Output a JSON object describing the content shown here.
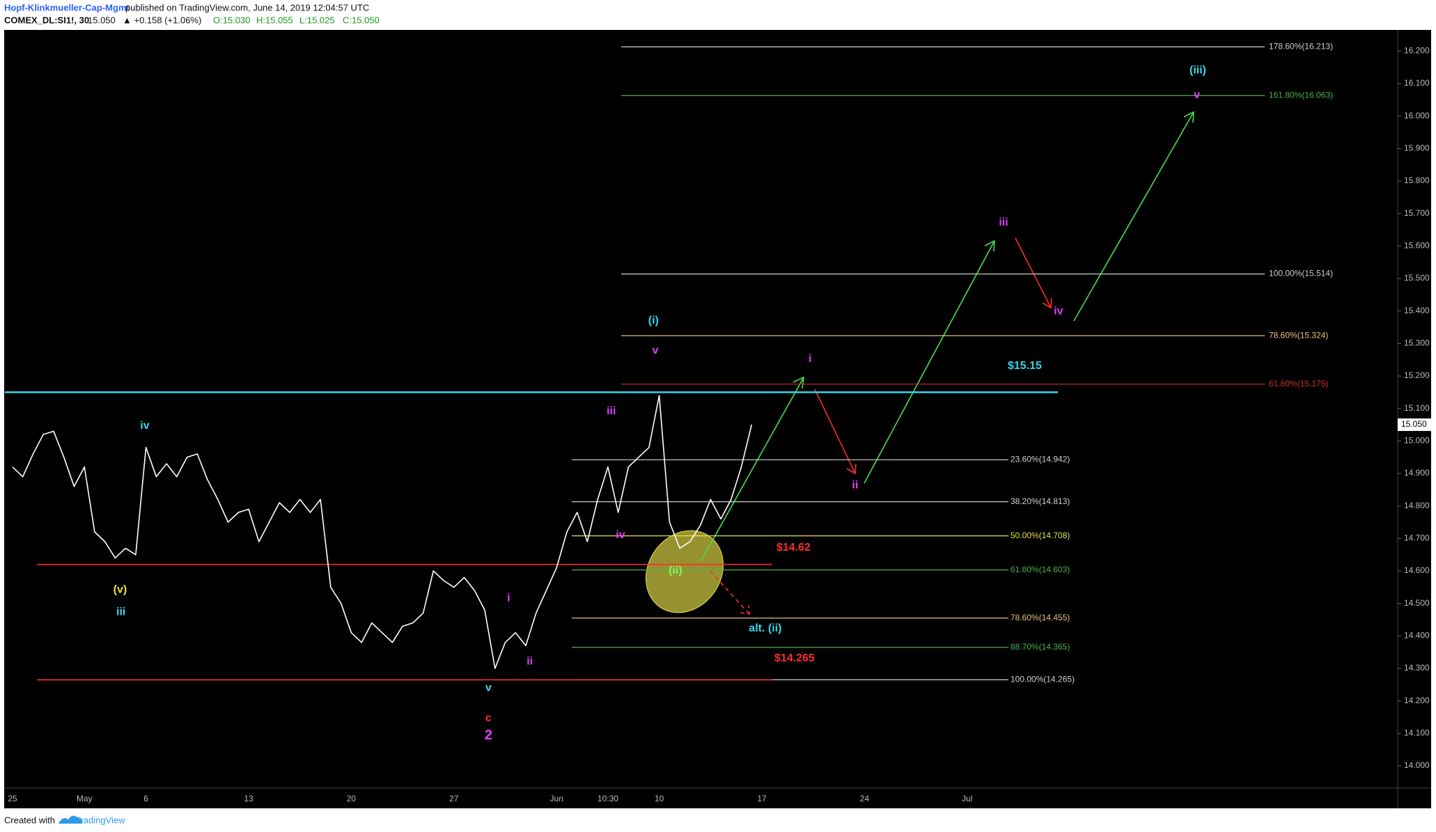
{
  "header": {
    "author": "Hopf-Klinkmueller-Cap-Mgmt",
    "published": "published on TradingView.com, June 14, 2019 12:04:57 UTC",
    "symbol": "COMEX_DL:SI1!, 30",
    "last": "15.050",
    "change": "▲ +0.158 (+1.06%)",
    "open": "O:15.030",
    "high": "H:15.055",
    "low": "L:15.025",
    "close": "C:15.050"
  },
  "footer": {
    "created": "Created with",
    "brand": "TradingView"
  },
  "chart_data": {
    "type": "line",
    "color": "#ffffff",
    "categories": [
      "25",
      null,
      null,
      null,
      null,
      null,
      null,
      "May",
      null,
      null,
      null,
      null,
      null,
      "6",
      null,
      null,
      null,
      null,
      null,
      null,
      null,
      null,
      null,
      "13",
      null,
      null,
      null,
      null,
      null,
      null,
      null,
      null,
      null,
      "20",
      null,
      null,
      null,
      null,
      null,
      null,
      null,
      null,
      null,
      "27",
      null,
      null,
      null,
      null,
      null,
      null,
      null,
      null,
      null,
      "Jun",
      null,
      null,
      null,
      null,
      "10:30",
      null,
      null,
      null,
      null,
      "10",
      null,
      null,
      null,
      null,
      null,
      null,
      null,
      null,
      null,
      "17",
      null,
      null,
      null,
      null,
      null,
      null,
      null,
      null,
      null,
      "24",
      null,
      null,
      null,
      null,
      null,
      null,
      null,
      null,
      null,
      "Jul",
      null,
      null,
      null,
      null,
      null,
      null,
      null,
      null,
      null,
      null,
      null,
      null,
      null,
      null,
      null,
      null,
      null,
      null,
      null,
      null,
      null,
      null,
      null,
      null,
      null,
      null
    ],
    "values": [
      14.92,
      14.89,
      14.96,
      15.02,
      15.03,
      14.95,
      14.86,
      14.92,
      14.72,
      14.69,
      14.64,
      14.67,
      14.65,
      14.98,
      14.89,
      14.93,
      14.89,
      14.95,
      14.96,
      14.88,
      14.82,
      14.75,
      14.78,
      14.79,
      14.69,
      14.75,
      14.81,
      14.78,
      14.82,
      14.78,
      14.82,
      14.55,
      14.5,
      14.41,
      14.38,
      14.44,
      14.41,
      14.38,
      14.43,
      14.44,
      14.47,
      14.6,
      14.57,
      14.55,
      14.58,
      14.54,
      14.48,
      14.3,
      14.38,
      14.41,
      14.37,
      14.47,
      14.54,
      14.61,
      14.72,
      14.78,
      14.69,
      14.82,
      14.92,
      14.78,
      14.92,
      14.95,
      14.98,
      15.14,
      14.75,
      14.67,
      14.69,
      14.74,
      14.82,
      14.76,
      14.82,
      14.92,
      15.05,
      null,
      null,
      null,
      null,
      null,
      null,
      null,
      null,
      null,
      null,
      null,
      null,
      null,
      null,
      null,
      null,
      null,
      null,
      null,
      null,
      null,
      null,
      null,
      null,
      null,
      null,
      null,
      null,
      null,
      null,
      null,
      null,
      null,
      null,
      null,
      null,
      null,
      null,
      null,
      null,
      null,
      null,
      null,
      null,
      null,
      null,
      null
    ],
    "ylim": [
      13.938,
      16.265
    ],
    "yticks": [
      {
        "value": 14.0,
        "label": "14.000"
      },
      {
        "value": 14.1,
        "label": "14.100"
      },
      {
        "value": 14.2,
        "label": "14.200"
      },
      {
        "value": 14.3,
        "label": "14.300"
      },
      {
        "value": 14.4,
        "label": "14.400"
      },
      {
        "value": 14.5,
        "label": "14.500"
      },
      {
        "value": 14.6,
        "label": "14.600"
      },
      {
        "value": 14.7,
        "label": "14.700"
      },
      {
        "value": 14.8,
        "label": "14.800"
      },
      {
        "value": 14.9,
        "label": "14.900"
      },
      {
        "value": 15.0,
        "label": "15.000"
      },
      {
        "value": 15.1,
        "label": "15.100"
      },
      {
        "value": 15.2,
        "label": "15.200"
      },
      {
        "value": 15.3,
        "label": "15.300"
      },
      {
        "value": 15.4,
        "label": "15.400"
      },
      {
        "value": 15.5,
        "label": "15.500"
      },
      {
        "value": 15.6,
        "label": "15.600"
      },
      {
        "value": 15.7,
        "label": "15.700"
      },
      {
        "value": 15.8,
        "label": "15.800"
      },
      {
        "value": 15.9,
        "label": "15.900"
      },
      {
        "value": 16.0,
        "label": "16.000"
      },
      {
        "value": 16.1,
        "label": "16.100"
      },
      {
        "value": 16.2,
        "label": "16.200"
      }
    ],
    "last_price": {
      "value": 15.05,
      "label": "15.050"
    },
    "fib_upper": [
      {
        "value": 16.213,
        "label": "178.60%(16.213)",
        "color": "#d0d0d0"
      },
      {
        "value": 16.063,
        "label": "161.80%(16.063)",
        "color": "#4caf50"
      },
      {
        "value": 15.514,
        "label": "100.00%(15.514)",
        "color": "#d0d0d0"
      },
      {
        "value": 15.324,
        "label": "78.60%(15.324)",
        "color": "#e6c27a"
      },
      {
        "value": 15.175,
        "label": "61.80%(15.175)",
        "color": "#d32f2f"
      }
    ],
    "fib_lower": [
      {
        "value": 14.942,
        "label": "23.60%(14.942)",
        "color": "#d0d0d0"
      },
      {
        "value": 14.813,
        "label": "38.20%(14.813)",
        "color": "#d0d0d0"
      },
      {
        "value": 14.708,
        "label": "50.00%(14.708)",
        "color": "#e6e04a"
      },
      {
        "value": 14.603,
        "label": "61.80%(14.603)",
        "color": "#4caf50"
      },
      {
        "value": 14.455,
        "label": "78.60%(14.455)",
        "color": "#e6c27a"
      },
      {
        "value": 14.365,
        "label": "88.70%(14.365)",
        "color": "#4caf50"
      },
      {
        "value": 14.265,
        "label": "100.00%(14.265)",
        "color": "#d0d0d0"
      }
    ],
    "levels": [
      {
        "value": 14.62,
        "label": "$14.62",
        "color": "#ff2b2b"
      },
      {
        "value": 14.265,
        "label": "$14.265",
        "color": "#ff2b2b"
      },
      {
        "value": 15.15,
        "label": "$15.15",
        "color": "#38d6e8"
      }
    ],
    "wave_labels": [
      {
        "text": "iv",
        "color": "#38d6e8"
      },
      {
        "text": "iii",
        "color": "#38d6e8"
      },
      {
        "text": "(v)",
        "color": "#e6e04a"
      },
      {
        "text": "v",
        "color": "#38d6e8"
      },
      {
        "text": "c",
        "color": "#ff2b2b"
      },
      {
        "text": "2",
        "color": "#e040fb"
      },
      {
        "text": "i",
        "color": "#e040fb"
      },
      {
        "text": "ii",
        "color": "#e040fb"
      },
      {
        "text": "iii",
        "color": "#e040fb"
      },
      {
        "text": "iv",
        "color": "#e040fb"
      },
      {
        "text": "v",
        "color": "#e040fb"
      },
      {
        "text": "(i)",
        "color": "#38d6e8"
      },
      {
        "text": "(ii)",
        "color": "#7cfc5a"
      },
      {
        "text": "alt. (ii)",
        "color": "#38d6e8"
      },
      {
        "text": "i",
        "color": "#e040fb"
      },
      {
        "text": "ii",
        "color": "#e040fb"
      },
      {
        "text": "iii",
        "color": "#e040fb"
      },
      {
        "text": "iv",
        "color": "#e040fb"
      },
      {
        "text": "v",
        "color": "#e040fb"
      },
      {
        "text": "(iii)",
        "color": "#38d6e8"
      }
    ]
  }
}
